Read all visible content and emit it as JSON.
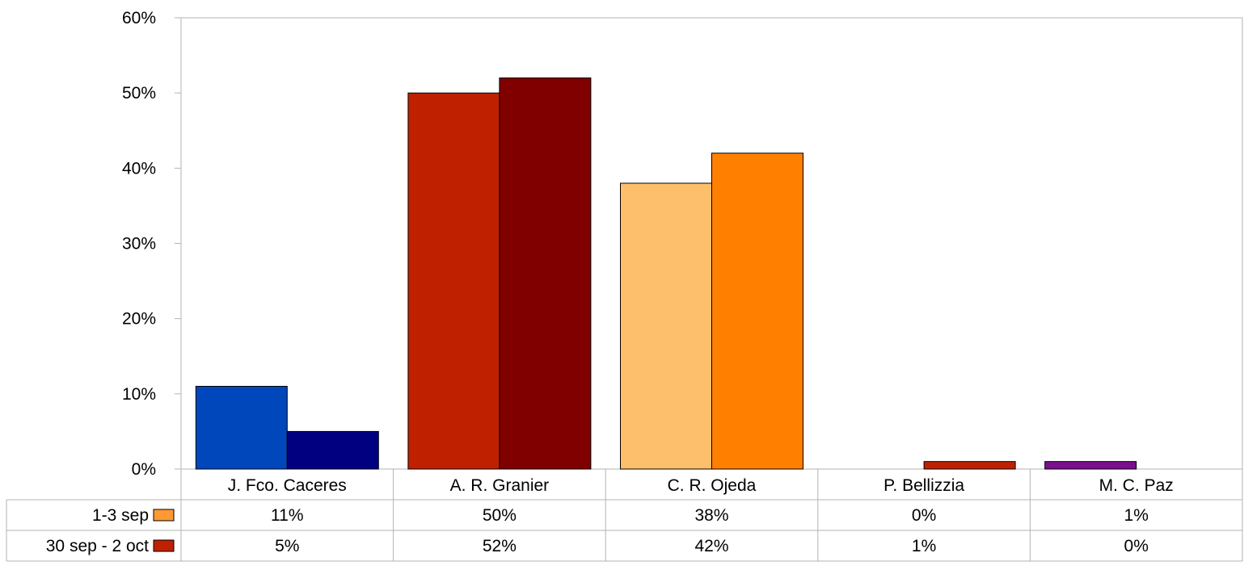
{
  "chart_data": {
    "type": "bar",
    "categories": [
      "J. Fco. Caceres",
      "A. R. Granier",
      "C. R. Ojeda",
      "P. Bellizzia",
      "M. C. Paz"
    ],
    "series": [
      {
        "name": "1-3 sep",
        "values": [
          11,
          50,
          38,
          0,
          1
        ],
        "labels": [
          "11%",
          "50%",
          "38%",
          "0%",
          "1%"
        ]
      },
      {
        "name": "30 sep - 2 oct",
        "values": [
          5,
          52,
          42,
          1,
          0
        ],
        "labels": [
          "5%",
          "52%",
          "42%",
          "1%",
          "0%"
        ]
      }
    ],
    "ylim": [
      0,
      60
    ],
    "yticks": [
      0,
      10,
      20,
      30,
      40,
      50,
      60
    ],
    "ytick_labels": [
      "0%",
      "10%",
      "20%",
      "30%",
      "40%",
      "50%",
      "60%"
    ],
    "grid": false,
    "legend": "data-table",
    "colors": {
      "series1": [
        "#0047bb",
        "#bf2100",
        "#fdbf6b",
        "#bf2100",
        "#7b0f8f"
      ],
      "series2": [
        "#000080",
        "#800000",
        "#ff8000",
        "#bf2100",
        "#7b0f8f"
      ],
      "legend_key1": "#ff9933",
      "legend_key2": "#bf2100"
    }
  }
}
